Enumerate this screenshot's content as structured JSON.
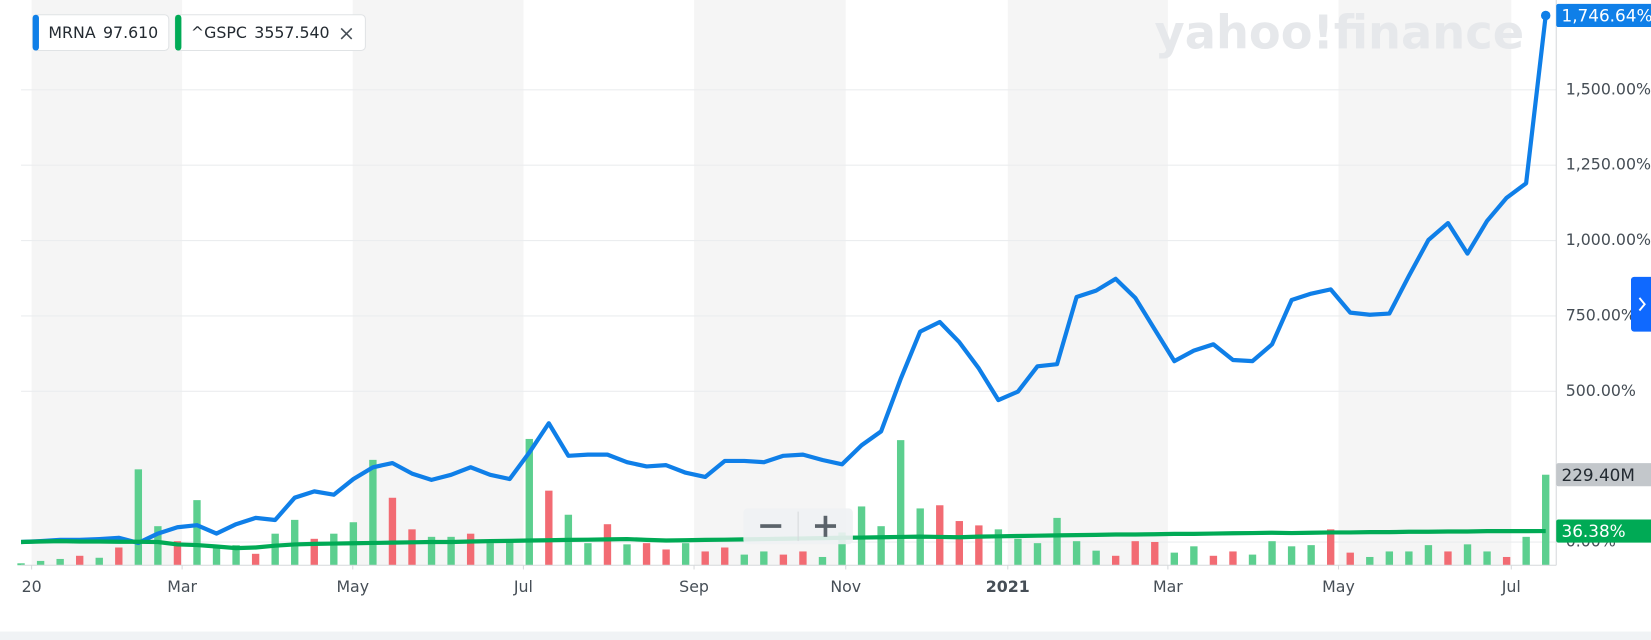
{
  "chart_data": {
    "type": "line",
    "watermark": "yahoo!finance",
    "xlim": [
      0,
      78
    ],
    "ylim": [
      -77,
      1791
    ],
    "yticks": [
      {
        "value": 0,
        "label": "0.00%"
      },
      {
        "value": 500,
        "label": "500.00%"
      },
      {
        "value": 750,
        "label": "750.00%"
      },
      {
        "value": 1000,
        "label": "1,000.00%"
      },
      {
        "value": 1250,
        "label": "1,250.00%"
      },
      {
        "value": 1500,
        "label": "1,500.00%"
      }
    ],
    "xticks": [
      {
        "value": 0.54,
        "label": "20"
      },
      {
        "value": 8.24,
        "label": "Mar"
      },
      {
        "value": 16.97,
        "label": "May"
      },
      {
        "value": 25.7,
        "label": "Jul"
      },
      {
        "value": 34.43,
        "label": "Sep"
      },
      {
        "value": 42.19,
        "label": "Nov"
      },
      {
        "value": 50.48,
        "label": "2021"
      },
      {
        "value": 58.67,
        "label": "Mar"
      },
      {
        "value": 67.4,
        "label": "May"
      },
      {
        "value": 76.24,
        "label": "Jul"
      }
    ],
    "grid": true,
    "series": [
      {
        "name": "MRNA",
        "price": "97.610",
        "color": "#0f7fe8",
        "last_label": "1,746.64%",
        "values": [
          0,
          3,
          7,
          7,
          10,
          14,
          -3,
          28,
          49,
          56,
          28,
          59,
          80,
          73,
          147,
          168,
          157,
          209,
          248,
          262,
          227,
          206,
          223,
          248,
          223,
          209,
          297,
          394,
          286,
          290,
          290,
          265,
          251,
          255,
          230,
          216,
          269,
          269,
          265,
          286,
          290,
          272,
          258,
          321,
          367,
          541,
          698,
          730,
          663,
          576,
          471,
          499,
          583,
          590,
          813,
          834,
          873,
          810,
          705,
          600,
          635,
          656,
          604,
          600,
          656,
          803,
          824,
          838,
          761,
          754,
          758,
          883,
          1002,
          1058,
          957,
          1065,
          1142,
          1190,
          1746.64
        ]
      },
      {
        "name": "^GSPC",
        "price": "3557.540",
        "color": "#00aa55",
        "last_label": "36.38%",
        "values": [
          0,
          2,
          3,
          2,
          2,
          1,
          1,
          0,
          -8,
          -10,
          -15,
          -20,
          -18,
          -12,
          -8,
          -6,
          -5,
          -4,
          -3,
          -2,
          -1,
          0,
          0,
          2,
          3,
          4,
          5,
          6,
          7,
          8,
          9,
          10,
          7,
          5,
          6,
          7,
          8,
          9,
          10,
          11,
          12,
          13,
          14,
          15,
          16,
          17,
          18,
          17,
          16,
          18,
          19,
          20,
          21,
          22,
          23,
          24,
          25,
          25,
          26,
          27,
          27,
          28,
          29,
          30,
          31,
          30,
          31,
          32,
          32,
          33,
          33,
          34,
          34,
          35,
          35,
          36,
          36,
          36,
          36.38
        ]
      }
    ],
    "volume": {
      "ylim": [
        0,
        600
      ],
      "last_label": "229.40M",
      "values": [
        5,
        11,
        16,
        24,
        19,
        45,
        243,
        99,
        61,
        165,
        45,
        51,
        29,
        80,
        115,
        67,
        80,
        109,
        267,
        171,
        91,
        72,
        72,
        80,
        56,
        59,
        320,
        189,
        128,
        56,
        104,
        53,
        56,
        40,
        56,
        35,
        45,
        27,
        35,
        27,
        35,
        21,
        83,
        149,
        99,
        317,
        144,
        152,
        112,
        101,
        91,
        67,
        56,
        120,
        61,
        37,
        24,
        61,
        59,
        32,
        48,
        24,
        35,
        27,
        61,
        48,
        51,
        91,
        32,
        21,
        35,
        35,
        51,
        35,
        53,
        35,
        21,
        72,
        229.4
      ],
      "colors": [
        "#5ccf8f",
        "#5ccf8f",
        "#5ccf8f",
        "#f26b73",
        "#5ccf8f",
        "#f26b73",
        "#5ccf8f",
        "#5ccf8f",
        "#f26b73",
        "#5ccf8f",
        "#5ccf8f",
        "#5ccf8f",
        "#f26b73",
        "#5ccf8f",
        "#5ccf8f",
        "#f26b73",
        "#5ccf8f",
        "#5ccf8f",
        "#5ccf8f",
        "#f26b73",
        "#f26b73",
        "#5ccf8f",
        "#5ccf8f",
        "#f26b73",
        "#5ccf8f",
        "#5ccf8f",
        "#5ccf8f",
        "#f26b73",
        "#5ccf8f",
        "#5ccf8f",
        "#f26b73",
        "#5ccf8f",
        "#f26b73",
        "#f26b73",
        "#5ccf8f",
        "#f26b73",
        "#f26b73",
        "#5ccf8f",
        "#5ccf8f",
        "#f26b73",
        "#f26b73",
        "#5ccf8f",
        "#5ccf8f",
        "#5ccf8f",
        "#5ccf8f",
        "#5ccf8f",
        "#5ccf8f",
        "#f26b73",
        "#f26b73",
        "#f26b73",
        "#5ccf8f",
        "#5ccf8f",
        "#5ccf8f",
        "#5ccf8f",
        "#5ccf8f",
        "#5ccf8f",
        "#f26b73",
        "#f26b73",
        "#f26b73",
        "#5ccf8f",
        "#5ccf8f",
        "#f26b73",
        "#f26b73",
        "#5ccf8f",
        "#5ccf8f",
        "#5ccf8f",
        "#5ccf8f",
        "#f26b73",
        "#f26b73",
        "#5ccf8f",
        "#5ccf8f",
        "#5ccf8f",
        "#5ccf8f",
        "#f26b73",
        "#5ccf8f",
        "#5ccf8f",
        "#f26b73",
        "#5ccf8f",
        "#5ccf8f"
      ]
    }
  }
}
